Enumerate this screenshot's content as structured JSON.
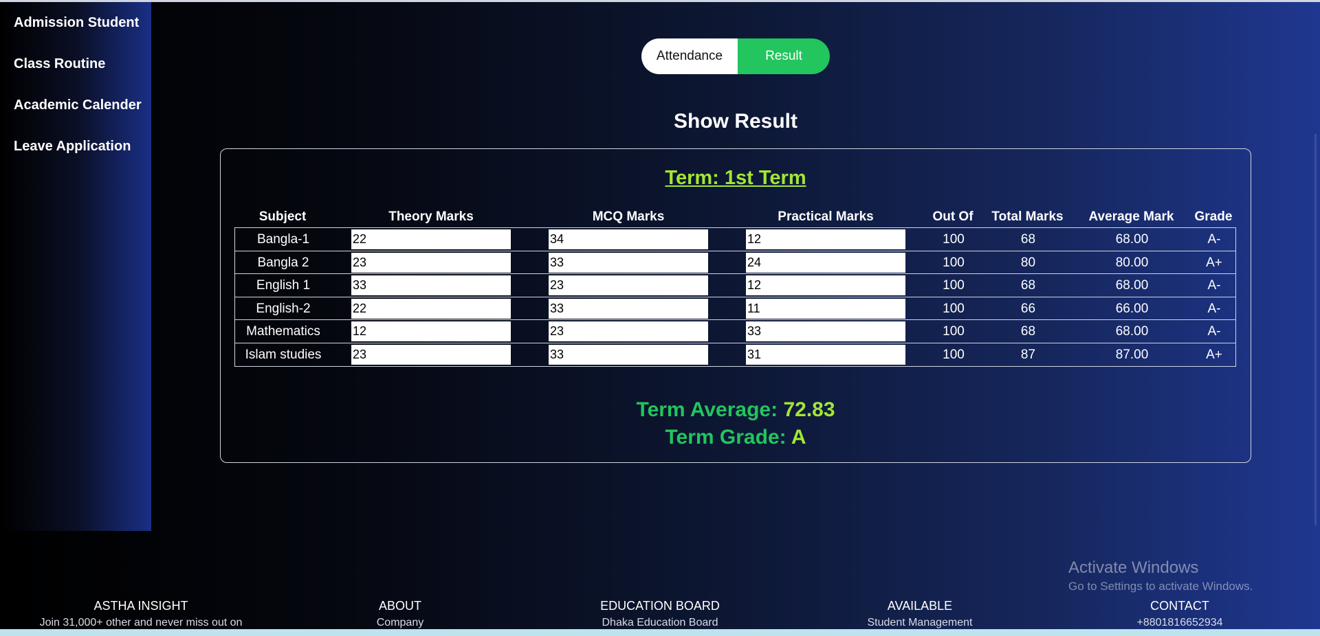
{
  "sidebar": {
    "items": [
      {
        "label": "Admission Student"
      },
      {
        "label": "Class Routine"
      },
      {
        "label": "Academic Calender"
      },
      {
        "label": "Leave Application"
      }
    ]
  },
  "toggle": {
    "attendance_label": "Attendance",
    "result_label": "Result",
    "active": "Result"
  },
  "page_title": "Show Result",
  "result": {
    "term_title": "Term: 1st Term",
    "columns": [
      "Subject",
      "Theory Marks",
      "MCQ Marks",
      "Practical Marks",
      "Out Of",
      "Total Marks",
      "Average Mark",
      "Grade"
    ],
    "rows": [
      {
        "subject": "Bangla-1",
        "theory": "22",
        "mcq": "34",
        "practical": "12",
        "out_of": "100",
        "total": "68",
        "average": "68.00",
        "grade": "A-"
      },
      {
        "subject": "Bangla 2",
        "theory": "23",
        "mcq": "33",
        "practical": "24",
        "out_of": "100",
        "total": "80",
        "average": "80.00",
        "grade": "A+"
      },
      {
        "subject": "English 1",
        "theory": "33",
        "mcq": "23",
        "practical": "12",
        "out_of": "100",
        "total": "68",
        "average": "68.00",
        "grade": "A-"
      },
      {
        "subject": "English-2",
        "theory": "22",
        "mcq": "33",
        "practical": "11",
        "out_of": "100",
        "total": "66",
        "average": "66.00",
        "grade": "A-"
      },
      {
        "subject": "Mathematics",
        "theory": "12",
        "mcq": "23",
        "practical": "33",
        "out_of": "100",
        "total": "68",
        "average": "68.00",
        "grade": "A-"
      },
      {
        "subject": "Islam studies",
        "theory": "23",
        "mcq": "33",
        "practical": "31",
        "out_of": "100",
        "total": "87",
        "average": "87.00",
        "grade": "A+"
      }
    ],
    "term_average_label": "Term Average:",
    "term_average_value": "72.83",
    "term_grade_label": "Term Grade:",
    "term_grade_value": "A"
  },
  "footer": {
    "columns": [
      {
        "heading": "ASTHA INSIGHT",
        "line": "Join 31,000+ other and never miss out on"
      },
      {
        "heading": "ABOUT",
        "line": "Company"
      },
      {
        "heading": "EDUCATION BOARD",
        "line": "Dhaka Education Board"
      },
      {
        "heading": "AVAILABLE",
        "line": "Student Management"
      },
      {
        "heading": "CONTACT",
        "line": "+8801816652934"
      }
    ]
  },
  "watermark": {
    "title": "Activate Windows",
    "subtitle": "Go to Settings to activate Windows."
  },
  "colors": {
    "accent_green": "#22c55e",
    "term_lime": "#a3e635",
    "sidebar_blue": "#1a2f86"
  }
}
